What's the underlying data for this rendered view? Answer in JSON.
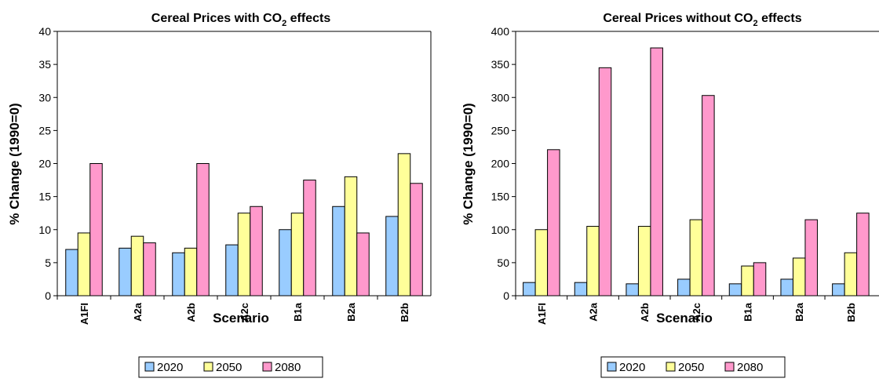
{
  "colors": {
    "2020": "#99ccff",
    "2050": "#ffff99",
    "2080": "#ff99cc"
  },
  "chart_data": [
    {
      "type": "bar",
      "title": "Cereal Prices with CO",
      "title_sub": "2",
      "title_suffix": " effects",
      "xlabel": "Scenario",
      "ylabel": "% Change (1990=0)",
      "ylim": [
        0,
        40
      ],
      "yticks": [
        "0",
        "5",
        "10",
        "15",
        "20",
        "25",
        "30",
        "35",
        "40"
      ],
      "grid": false,
      "legend_position": "bottom",
      "categories": [
        "A1FI",
        "A2a",
        "A2b",
        "A2c",
        "B1a",
        "B2a",
        "B2b"
      ],
      "series": [
        {
          "name": "2020",
          "values": [
            7,
            7.2,
            6.5,
            7.7,
            10,
            13.5,
            12
          ]
        },
        {
          "name": "2050",
          "values": [
            9.5,
            9,
            7.2,
            12.5,
            12.5,
            18,
            21.5
          ]
        },
        {
          "name": "2080",
          "values": [
            20,
            8,
            20,
            13.5,
            17.5,
            9.5,
            17
          ]
        }
      ]
    },
    {
      "type": "bar",
      "title": "Cereal Prices without CO",
      "title_sub": "2",
      "title_suffix": " effects",
      "xlabel": "Scenario",
      "ylabel": "% Change (1990=0)",
      "ylim": [
        0,
        400
      ],
      "yticks": [
        "0",
        "50",
        "100",
        "150",
        "200",
        "250",
        "300",
        "350",
        "400"
      ],
      "grid": false,
      "legend_position": "bottom",
      "categories": [
        "A1FI",
        "A2a",
        "A2b",
        "A2c",
        "B1a",
        "B2a",
        "B2b"
      ],
      "series": [
        {
          "name": "2020",
          "values": [
            20,
            20,
            18,
            25,
            18,
            25,
            18
          ]
        },
        {
          "name": "2050",
          "values": [
            100,
            105,
            105,
            115,
            45,
            57,
            65
          ]
        },
        {
          "name": "2080",
          "values": [
            221,
            345,
            375,
            303,
            50,
            115,
            125
          ]
        }
      ]
    }
  ]
}
